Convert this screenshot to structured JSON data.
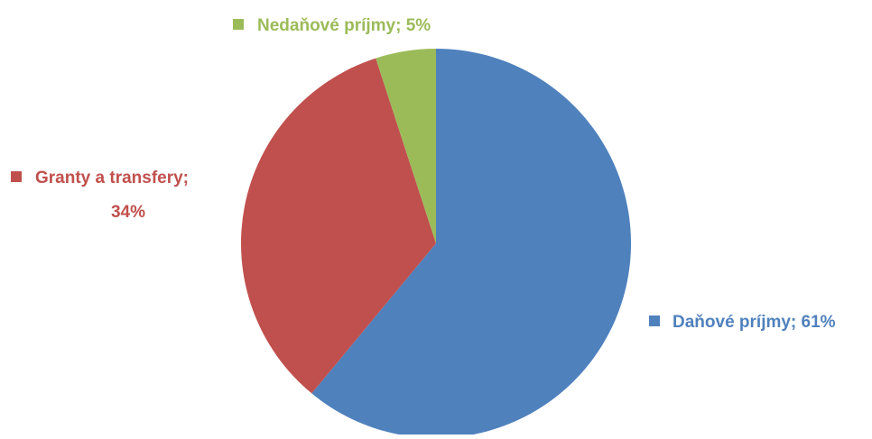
{
  "chart_data": {
    "type": "pie",
    "title": "",
    "slices": [
      {
        "label": "Daňové príjmy",
        "value": 61,
        "value_text": "61%",
        "color": "#4F81BD"
      },
      {
        "label": "Granty a transfery",
        "value": 34,
        "value_text": "34%",
        "color": "#C0504D"
      },
      {
        "label": "Nedaňové príjmy",
        "value": 5,
        "value_text": "5%",
        "color": "#9BBB59"
      }
    ],
    "start_angle_deg": 0,
    "direction": "clockwise",
    "labels": {
      "slice_0": "Daňové príjmy; 61%",
      "slice_1_line1": "Granty a transfery;",
      "slice_1_line2": "34%",
      "slice_2": "Nedaňové príjmy; 5%"
    }
  }
}
